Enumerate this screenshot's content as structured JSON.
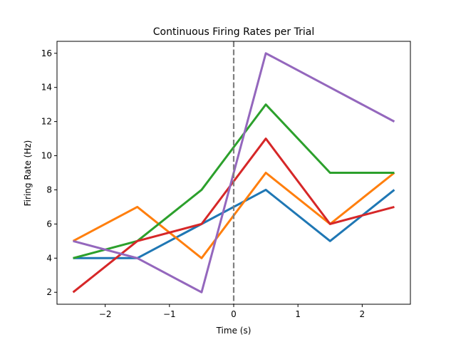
{
  "chart_data": {
    "type": "line",
    "title": "Continuous Firing Rates per Trial",
    "xlabel": "Time (s)",
    "ylabel": "Firing Rate (Hz)",
    "xlim": [
      -2.75,
      2.75
    ],
    "ylim": [
      1.3,
      16.7
    ],
    "xticks": [
      -2,
      -1,
      0,
      1,
      2
    ],
    "xtick_labels": [
      "−2",
      "−1",
      "0",
      "1",
      "2"
    ],
    "yticks": [
      2,
      4,
      6,
      8,
      10,
      12,
      14,
      16
    ],
    "ytick_labels": [
      "2",
      "4",
      "6",
      "8",
      "10",
      "12",
      "14",
      "16"
    ],
    "grid": false,
    "x": [
      -2.5,
      -1.5,
      -0.5,
      0.5,
      1.5,
      2.5
    ],
    "series": [
      {
        "color": "#1f77b4",
        "values": [
          4,
          4,
          6,
          8,
          5,
          8
        ]
      },
      {
        "color": "#ff7f0e",
        "values": [
          5,
          7,
          4,
          9,
          6,
          9
        ]
      },
      {
        "color": "#2ca02c",
        "values": [
          4,
          5,
          8,
          13,
          9,
          9
        ]
      },
      {
        "color": "#d62728",
        "values": [
          2,
          5,
          6,
          11,
          6,
          7
        ]
      },
      {
        "color": "#9467bd",
        "values": [
          5,
          4,
          2,
          16,
          14,
          12
        ]
      }
    ],
    "vline": {
      "x": 0,
      "color": "#808080",
      "style": "dashed"
    }
  }
}
